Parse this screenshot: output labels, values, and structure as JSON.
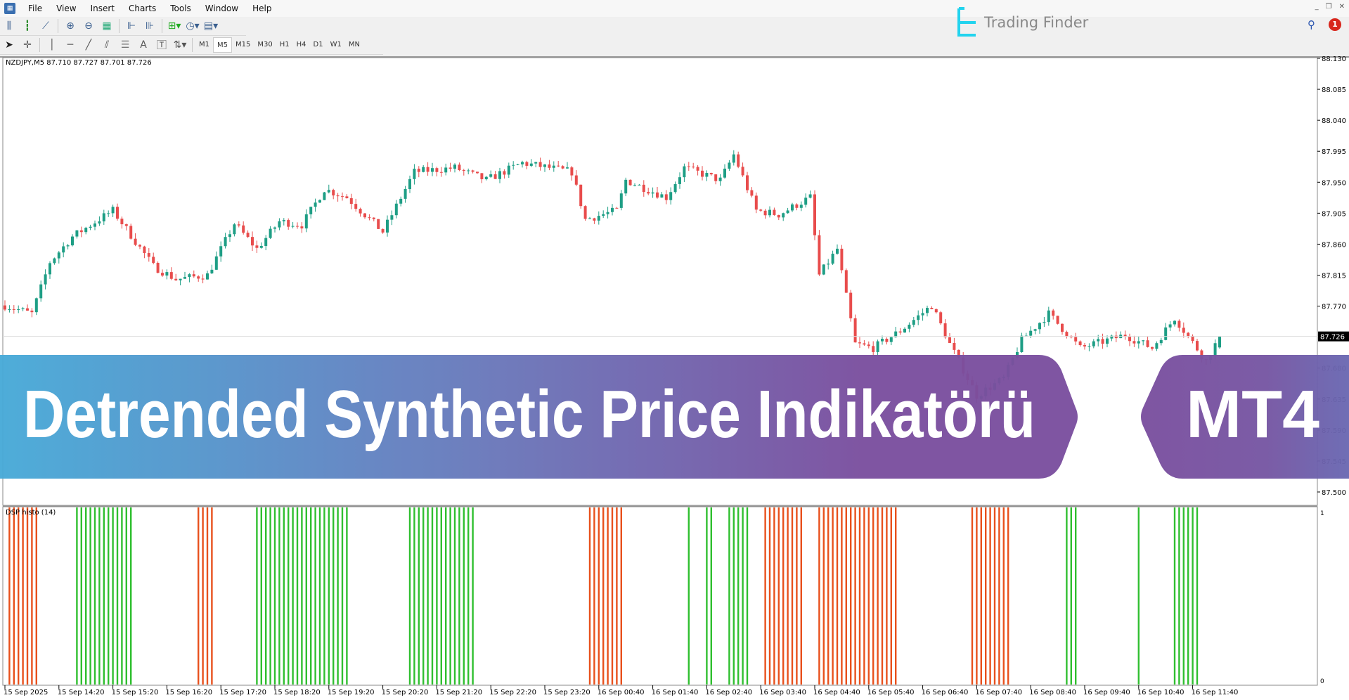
{
  "menu": {
    "items": [
      "File",
      "View",
      "Insert",
      "Charts",
      "Tools",
      "Window",
      "Help"
    ]
  },
  "toolbar": {
    "timeframes": [
      "M1",
      "M5",
      "M15",
      "M30",
      "H1",
      "H4",
      "D1",
      "W1",
      "MN"
    ],
    "active_timeframe": "M5"
  },
  "brand": {
    "logo_text": "Trading Finder",
    "notification_count": "1"
  },
  "chart": {
    "header": "NZDJPY,M5  87.710 87.727 87.701 87.726",
    "current_price": "87.726",
    "price_ticks": [
      "88.130",
      "88.085",
      "88.040",
      "87.995",
      "87.950",
      "87.905",
      "87.860",
      "87.815",
      "87.770",
      "87.680",
      "87.635",
      "87.590",
      "87.545",
      "87.500"
    ],
    "colors": {
      "bull": "#1e9e85",
      "bear": "#e84c4c",
      "histo_up": "#2fbf2f",
      "histo_down": "#e8501c"
    },
    "price_path": [
      [
        0,
        87.771
      ],
      [
        6,
        87.759
      ],
      [
        10,
        87.834
      ],
      [
        15,
        87.871
      ],
      [
        24,
        87.909
      ],
      [
        33,
        87.828
      ],
      [
        38,
        87.809
      ],
      [
        45,
        87.815
      ],
      [
        51,
        87.89
      ],
      [
        56,
        87.853
      ],
      [
        61,
        87.893
      ],
      [
        66,
        87.888
      ],
      [
        71,
        87.94
      ],
      [
        76,
        87.928
      ],
      [
        84,
        87.878
      ],
      [
        91,
        87.965
      ],
      [
        100,
        87.971
      ],
      [
        107,
        87.953
      ],
      [
        115,
        87.978
      ],
      [
        126,
        87.965
      ],
      [
        129,
        87.896
      ],
      [
        136,
        87.909
      ],
      [
        138,
        87.953
      ],
      [
        147,
        87.928
      ],
      [
        151,
        87.971
      ],
      [
        159,
        87.953
      ],
      [
        162,
        87.99
      ],
      [
        167,
        87.909
      ],
      [
        172,
        87.903
      ],
      [
        179,
        87.928
      ],
      [
        181,
        87.815
      ],
      [
        185,
        87.853
      ],
      [
        189,
        87.715
      ],
      [
        193,
        87.709
      ],
      [
        199,
        87.734
      ],
      [
        206,
        87.771
      ],
      [
        210,
        87.715
      ],
      [
        216,
        87.64
      ],
      [
        222,
        87.665
      ],
      [
        226,
        87.721
      ],
      [
        232,
        87.759
      ],
      [
        239,
        87.709
      ],
      [
        249,
        87.728
      ],
      [
        255,
        87.709
      ],
      [
        260,
        87.753
      ],
      [
        267,
        87.69
      ],
      [
        270,
        87.726
      ]
    ],
    "time_labels": [
      "15 Sep 2025",
      "15 Sep 14:20",
      "15 Sep 15:20",
      "15 Sep 16:20",
      "15 Sep 17:20",
      "15 Sep 18:20",
      "15 Sep 19:20",
      "15 Sep 20:20",
      "15 Sep 21:20",
      "15 Sep 22:20",
      "15 Sep 23:20",
      "16 Sep 00:40",
      "16 Sep 01:40",
      "16 Sep 02:40",
      "16 Sep 03:40",
      "16 Sep 04:40",
      "16 Sep 05:40",
      "16 Sep 06:40",
      "16 Sep 07:40",
      "16 Sep 08:40",
      "16 Sep 09:40",
      "16 Sep 10:40",
      "16 Sep 11:40"
    ]
  },
  "indicator": {
    "label": "DSP histo (14)",
    "scale_max": "1",
    "scale_min": "0",
    "segments": [
      {
        "from": 1,
        "to": 7,
        "dir": "down"
      },
      {
        "from": 16,
        "to": 28,
        "dir": "up"
      },
      {
        "from": 43,
        "to": 46,
        "dir": "down"
      },
      {
        "from": 56,
        "to": 76,
        "dir": "up"
      },
      {
        "from": 90,
        "to": 104,
        "dir": "up"
      },
      {
        "from": 130,
        "to": 137,
        "dir": "down"
      },
      {
        "from": 152,
        "to": 152,
        "dir": "up"
      },
      {
        "from": 156,
        "to": 157,
        "dir": "up"
      },
      {
        "from": 161,
        "to": 165,
        "dir": "up"
      },
      {
        "from": 169,
        "to": 177,
        "dir": "down"
      },
      {
        "from": 181,
        "to": 198,
        "dir": "down"
      },
      {
        "from": 215,
        "to": 223,
        "dir": "down"
      },
      {
        "from": 236,
        "to": 238,
        "dir": "up"
      },
      {
        "from": 252,
        "to": 252,
        "dir": "up"
      },
      {
        "from": 260,
        "to": 265,
        "dir": "up"
      }
    ]
  },
  "banner": {
    "title": "Detrended Synthetic Price Indikatörü",
    "platform": "MT4"
  }
}
